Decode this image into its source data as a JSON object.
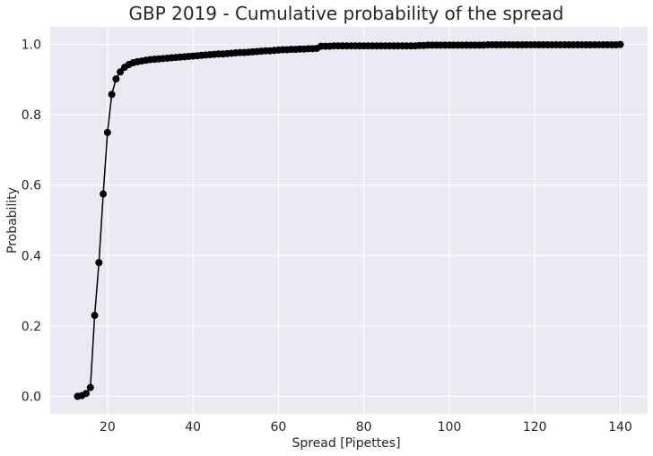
{
  "chart_data": {
    "type": "line",
    "title": "GBP 2019 - Cumulative probability of the spread",
    "xlabel": "Spread [Pipettes]",
    "ylabel": "Probability",
    "xlim": [
      6.6,
      146.4
    ],
    "ylim": [
      -0.05,
      1.05
    ],
    "xticks": [
      20,
      40,
      60,
      80,
      100,
      120,
      140
    ],
    "yticks": [
      0.0,
      0.2,
      0.4,
      0.6,
      0.8,
      1.0
    ],
    "xtick_labels": [
      "20",
      "40",
      "60",
      "80",
      "100",
      "120",
      "140"
    ],
    "ytick_labels": [
      "0.0",
      "0.2",
      "0.4",
      "0.6",
      "0.8",
      "1.0"
    ],
    "grid": true,
    "background": "#EAEAF2",
    "line_color": "#000000",
    "marker": "circle",
    "series": [
      {
        "x": [
          13,
          14,
          15,
          16,
          17,
          18,
          19,
          20,
          21,
          22,
          23,
          24,
          25,
          26,
          27,
          28,
          29,
          30,
          31,
          32,
          33,
          34,
          35,
          36,
          37,
          38,
          39,
          40,
          41,
          42,
          43,
          44,
          45,
          46,
          47,
          48,
          49,
          50,
          51,
          52,
          53,
          54,
          55,
          56,
          57,
          58,
          59,
          60,
          61,
          62,
          63,
          64,
          65,
          66,
          67,
          68,
          69,
          70,
          71,
          72,
          73,
          74,
          75,
          76,
          77,
          78,
          79,
          80,
          81,
          82,
          83,
          84,
          85,
          86,
          87,
          88,
          89,
          90,
          91,
          92,
          93,
          94,
          95,
          96,
          97,
          98,
          99,
          100,
          101,
          102,
          103,
          104,
          105,
          106,
          107,
          108,
          109,
          110,
          111,
          112,
          113,
          114,
          115,
          116,
          117,
          118,
          119,
          120,
          121,
          122,
          123,
          124,
          125,
          126,
          127,
          128,
          129,
          130,
          131,
          132,
          133,
          134,
          135,
          136,
          137,
          138,
          139,
          140
        ],
        "y": [
          0.0,
          0.002,
          0.008,
          0.025,
          0.23,
          0.38,
          0.575,
          0.75,
          0.858,
          0.902,
          0.922,
          0.935,
          0.943,
          0.948,
          0.951,
          0.953,
          0.955,
          0.957,
          0.958,
          0.959,
          0.96,
          0.961,
          0.962,
          0.963,
          0.964,
          0.965,
          0.966,
          0.967,
          0.968,
          0.969,
          0.97,
          0.971,
          0.972,
          0.973,
          0.973,
          0.974,
          0.975,
          0.976,
          0.977,
          0.977,
          0.978,
          0.979,
          0.98,
          0.981,
          0.982,
          0.982,
          0.983,
          0.984,
          0.985,
          0.985,
          0.986,
          0.986,
          0.987,
          0.987,
          0.988,
          0.988,
          0.989,
          0.995,
          0.995,
          0.995,
          0.996,
          0.996,
          0.996,
          0.996,
          0.996,
          0.996,
          0.996,
          0.996,
          0.996,
          0.996,
          0.996,
          0.996,
          0.996,
          0.996,
          0.996,
          0.996,
          0.996,
          0.996,
          0.996,
          0.996,
          0.997,
          0.997,
          0.998,
          0.998,
          0.998,
          0.998,
          0.998,
          0.998,
          0.998,
          0.998,
          0.998,
          0.998,
          0.998,
          0.998,
          0.998,
          0.998,
          0.999,
          0.999,
          0.999,
          0.999,
          0.999,
          0.999,
          0.999,
          0.999,
          0.999,
          0.999,
          0.999,
          0.999,
          0.999,
          0.999,
          0.999,
          0.999,
          0.999,
          0.999,
          0.999,
          0.999,
          0.999,
          0.999,
          0.999,
          0.999,
          0.999,
          0.999,
          0.999,
          0.999,
          0.999,
          0.999,
          0.999,
          1.0
        ]
      }
    ]
  }
}
